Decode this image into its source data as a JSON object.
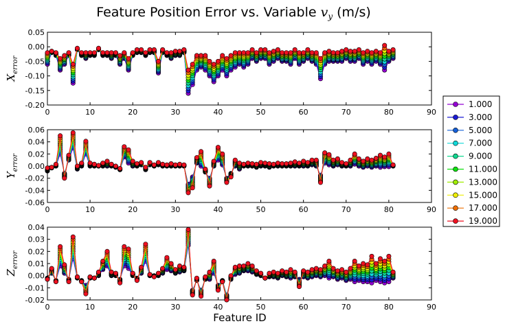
{
  "figure": {
    "title": "Feature Position Error vs. Variable v_y (m/s)",
    "title_main": "Feature Position Error vs. Variable ",
    "title_var": "v",
    "title_sub": "y",
    "title_unit": " (m/s)",
    "xlabel": "Feature ID"
  },
  "legend": {
    "placement": "right",
    "entries": [
      "1.000",
      "3.000",
      "5.000",
      "7.000",
      "9.000",
      "11.000",
      "13.000",
      "15.000",
      "17.000",
      "19.000"
    ],
    "colors": [
      "#9400d3",
      "#1a1ad6",
      "#1560d8",
      "#10d8d8",
      "#10d890",
      "#10e010",
      "#a0ee00",
      "#eeee00",
      "#ee6e00",
      "#ee1020"
    ]
  },
  "chart_data": [
    {
      "type": "line",
      "ylabel_main": "X",
      "ylabel_sub": "error",
      "xlim": [
        0,
        90
      ],
      "ylim": [
        -0.2,
        0.05
      ],
      "xticks": [
        "0",
        "10",
        "20",
        "30",
        "40",
        "50",
        "60",
        "70",
        "80",
        "90"
      ],
      "yticks": [
        "0.05",
        "0.00",
        "-0.05",
        "-0.10",
        "-0.15",
        "-0.20"
      ],
      "ytick_values": [
        0.05,
        0,
        -0.05,
        -0.1,
        -0.15,
        -0.2
      ],
      "x": [
        0,
        1,
        2,
        3,
        4,
        5,
        6,
        7,
        8,
        9,
        10,
        11,
        12,
        13,
        14,
        15,
        16,
        17,
        18,
        19,
        20,
        21,
        22,
        23,
        24,
        25,
        26,
        27,
        28,
        29,
        30,
        31,
        32,
        33,
        34,
        35,
        36,
        37,
        38,
        39,
        40,
        41,
        42,
        43,
        44,
        45,
        46,
        47,
        48,
        49,
        50,
        51,
        52,
        53,
        54,
        55,
        56,
        57,
        58,
        59,
        60,
        61,
        62,
        63,
        64,
        65,
        66,
        67,
        68,
        69,
        70,
        71,
        72,
        73,
        74,
        75,
        76,
        77,
        78,
        79,
        80,
        81
      ],
      "series_low": [
        -0.06,
        -0.02,
        -0.03,
        -0.08,
        -0.06,
        -0.03,
        -0.125,
        -0.01,
        -0.03,
        -0.04,
        -0.03,
        -0.03,
        -0.01,
        -0.03,
        -0.03,
        -0.04,
        -0.03,
        -0.06,
        -0.04,
        -0.08,
        -0.03,
        -0.02,
        -0.02,
        -0.03,
        -0.02,
        -0.02,
        -0.09,
        -0.02,
        -0.03,
        -0.04,
        -0.03,
        -0.03,
        -0.02,
        -0.16,
        -0.13,
        -0.08,
        -0.07,
        -0.08,
        -0.1,
        -0.12,
        -0.1,
        -0.08,
        -0.1,
        -0.08,
        -0.07,
        -0.06,
        -0.07,
        -0.06,
        -0.04,
        -0.05,
        -0.04,
        -0.04,
        -0.06,
        -0.05,
        -0.04,
        -0.05,
        -0.05,
        -0.06,
        -0.04,
        -0.06,
        -0.05,
        -0.04,
        -0.05,
        -0.06,
        -0.11,
        -0.06,
        -0.05,
        -0.05,
        -0.05,
        -0.05,
        -0.04,
        -0.05,
        -0.05,
        -0.04,
        -0.06,
        -0.05,
        -0.06,
        -0.05,
        -0.06,
        -0.08,
        -0.05,
        -0.04
      ],
      "series_high": [
        -0.02,
        -0.015,
        -0.02,
        -0.04,
        -0.03,
        -0.02,
        -0.06,
        -0.005,
        -0.02,
        -0.02,
        -0.02,
        -0.02,
        -0.005,
        -0.02,
        -0.02,
        -0.02,
        -0.02,
        -0.03,
        -0.02,
        -0.04,
        -0.02,
        -0.01,
        -0.01,
        -0.02,
        -0.01,
        -0.01,
        -0.05,
        -0.01,
        -0.02,
        -0.02,
        -0.015,
        -0.015,
        -0.01,
        -0.08,
        -0.06,
        -0.03,
        -0.03,
        -0.03,
        -0.05,
        -0.06,
        -0.05,
        -0.03,
        -0.04,
        -0.03,
        -0.02,
        -0.02,
        -0.02,
        -0.02,
        -0.01,
        -0.02,
        -0.01,
        -0.01,
        -0.02,
        -0.015,
        -0.01,
        -0.02,
        -0.02,
        -0.02,
        -0.01,
        -0.02,
        -0.02,
        -0.01,
        -0.02,
        -0.02,
        -0.04,
        -0.02,
        -0.015,
        -0.02,
        -0.02,
        -0.015,
        -0.01,
        -0.015,
        -0.015,
        -0.01,
        -0.02,
        -0.015,
        -0.02,
        -0.015,
        -0.02,
        0.005,
        -0.015,
        -0.01
      ]
    },
    {
      "type": "line",
      "ylabel_main": "Y",
      "ylabel_sub": "error",
      "xlim": [
        0,
        90
      ],
      "ylim": [
        -0.06,
        0.06
      ],
      "xticks": [
        "0",
        "10",
        "20",
        "30",
        "40",
        "50",
        "60",
        "70",
        "80",
        "90"
      ],
      "yticks": [
        "0.06",
        "0.04",
        "0.02",
        "0.00",
        "-0.02",
        "-0.04",
        "-0.06"
      ],
      "ytick_values": [
        0.06,
        0.04,
        0.02,
        0,
        -0.02,
        -0.04,
        -0.06
      ],
      "x": [
        0,
        1,
        2,
        3,
        4,
        5,
        6,
        7,
        8,
        9,
        10,
        11,
        12,
        13,
        14,
        15,
        16,
        17,
        18,
        19,
        20,
        21,
        22,
        23,
        24,
        25,
        26,
        27,
        28,
        29,
        30,
        31,
        32,
        33,
        34,
        35,
        36,
        37,
        38,
        39,
        40,
        41,
        42,
        43,
        44,
        45,
        46,
        47,
        48,
        49,
        50,
        51,
        52,
        53,
        54,
        55,
        56,
        57,
        58,
        59,
        60,
        61,
        62,
        63,
        64,
        65,
        66,
        67,
        68,
        69,
        70,
        71,
        72,
        73,
        74,
        75,
        76,
        77,
        78,
        79,
        80,
        81
      ],
      "series_low": [
        -0.008,
        -0.003,
        0.0,
        0.02,
        -0.012,
        0.01,
        0.03,
        -0.005,
        0.0,
        0.02,
        0.0,
        0.0,
        0.0,
        0.0,
        0.0,
        0.0,
        -0.002,
        -0.006,
        0.015,
        0.005,
        0.0,
        0.0,
        0.002,
        -0.006,
        0.002,
        0.0,
        0.002,
        0.0,
        0.0,
        0.0,
        0.0,
        0.0,
        0.0,
        -0.03,
        -0.018,
        0.005,
        0.0,
        -0.01,
        -0.02,
        0.0,
        0.01,
        0.002,
        -0.02,
        -0.012,
        0.0,
        -0.005,
        0.0,
        0.0,
        0.0,
        -0.002,
        0.0,
        0.0,
        -0.002,
        0.0,
        0.0,
        0.0,
        0.0,
        0.0,
        0.0,
        0.0,
        0.0,
        0.0,
        0.002,
        0.0,
        -0.015,
        0.005,
        0.002,
        0.0,
        0.002,
        0.0,
        0.0,
        0.0,
        0.003,
        0.0,
        -0.002,
        0.0,
        -0.002,
        0.0,
        -0.002,
        -0.001,
        -0.001,
        0.0
      ],
      "series_high": [
        -0.003,
        -0.002,
        0.003,
        0.05,
        -0.02,
        0.018,
        0.055,
        0.0,
        0.005,
        0.041,
        0.005,
        0.003,
        0.001,
        0.005,
        0.008,
        0.003,
        0.0,
        -0.004,
        0.032,
        0.027,
        0.008,
        0.004,
        0.006,
        -0.002,
        0.006,
        0.002,
        0.006,
        0.003,
        0.002,
        0.004,
        0.002,
        0.003,
        0.002,
        -0.044,
        -0.036,
        0.014,
        0.024,
        -0.005,
        -0.033,
        0.008,
        0.031,
        0.02,
        -0.027,
        -0.018,
        0.01,
        0.005,
        0.003,
        0.005,
        0.004,
        0.003,
        0.006,
        0.005,
        0.004,
        0.003,
        0.005,
        0.004,
        0.004,
        0.005,
        0.007,
        0.005,
        0.008,
        0.006,
        0.01,
        0.01,
        -0.027,
        0.022,
        0.019,
        0.01,
        0.012,
        0.006,
        0.004,
        0.01,
        0.02,
        0.012,
        0.008,
        0.012,
        0.01,
        0.013,
        0.018,
        0.015,
        0.02,
        0.002
      ]
    },
    {
      "type": "line",
      "ylabel_main": "Z",
      "ylabel_sub": "error",
      "xlim": [
        0,
        90
      ],
      "ylim": [
        -0.02,
        0.04
      ],
      "xticks": [
        "0",
        "10",
        "20",
        "30",
        "40",
        "50",
        "60",
        "70",
        "80",
        "90"
      ],
      "yticks": [
        "0.04",
        "0.03",
        "0.02",
        "0.01",
        "0.00",
        "-0.01",
        "-0.02"
      ],
      "ytick_values": [
        0.04,
        0.03,
        0.02,
        0.01,
        0,
        -0.01,
        -0.02
      ],
      "x": [
        0,
        1,
        2,
        3,
        4,
        5,
        6,
        7,
        8,
        9,
        10,
        11,
        12,
        13,
        14,
        15,
        16,
        17,
        18,
        19,
        20,
        21,
        22,
        23,
        24,
        25,
        26,
        27,
        28,
        29,
        30,
        31,
        32,
        33,
        34,
        35,
        36,
        37,
        38,
        39,
        40,
        41,
        42,
        43,
        44,
        45,
        46,
        47,
        48,
        49,
        50,
        51,
        52,
        53,
        54,
        55,
        56,
        57,
        58,
        59,
        60,
        61,
        62,
        63,
        64,
        65,
        66,
        67,
        68,
        69,
        70,
        71,
        72,
        73,
        74,
        75,
        76,
        77,
        78,
        79,
        80,
        81
      ],
      "series_low": [
        -0.002,
        0.002,
        -0.004,
        0.008,
        0.002,
        -0.003,
        0.014,
        -0.002,
        -0.004,
        -0.008,
        -0.002,
        -0.002,
        0.0,
        0.005,
        0.008,
        0.0,
        0.0,
        -0.003,
        0.008,
        0.006,
        0.0,
        -0.002,
        0.002,
        0.012,
        0.0,
        0.0,
        0.0,
        0.002,
        0.005,
        0.004,
        0.002,
        0.003,
        0.004,
        0.025,
        -0.012,
        -0.004,
        -0.012,
        -0.003,
        -0.003,
        0.002,
        -0.008,
        -0.004,
        -0.016,
        -0.003,
        0.001,
        0.002,
        0.004,
        0.004,
        0.003,
        0.001,
        0.0,
        -0.002,
        -0.001,
        -0.001,
        -0.002,
        0.0,
        -0.001,
        -0.002,
        -0.001,
        -0.003,
        -0.001,
        -0.002,
        -0.001,
        0.0,
        -0.001,
        0.0,
        -0.002,
        -0.001,
        -0.003,
        -0.002,
        -0.004,
        -0.003,
        -0.005,
        -0.004,
        -0.005,
        -0.005,
        -0.006,
        -0.004,
        -0.005,
        -0.006,
        -0.005,
        -0.002
      ],
      "series_high": [
        -0.003,
        0.006,
        -0.005,
        0.024,
        0.009,
        -0.005,
        0.032,
        -0.001,
        -0.005,
        -0.015,
        -0.001,
        -0.002,
        0.003,
        0.012,
        0.02,
        0.003,
        0.002,
        -0.006,
        0.024,
        0.022,
        0.002,
        -0.004,
        0.007,
        0.026,
        0.001,
        -0.001,
        0.002,
        0.006,
        0.015,
        0.01,
        0.005,
        0.008,
        0.007,
        0.038,
        -0.016,
        -0.002,
        -0.017,
        -0.001,
        0.003,
        0.012,
        -0.012,
        -0.005,
        -0.02,
        0.0,
        0.007,
        0.008,
        0.008,
        0.01,
        0.008,
        0.004,
        0.002,
        -0.002,
        0.002,
        0.003,
        0.002,
        0.004,
        0.003,
        0.005,
        0.003,
        -0.009,
        0.004,
        0.003,
        0.005,
        0.006,
        0.005,
        0.008,
        0.012,
        0.006,
        0.004,
        0.005,
        0.003,
        0.006,
        0.012,
        0.008,
        0.01,
        0.009,
        0.016,
        0.01,
        0.014,
        0.012,
        0.016,
        0.003
      ]
    }
  ]
}
